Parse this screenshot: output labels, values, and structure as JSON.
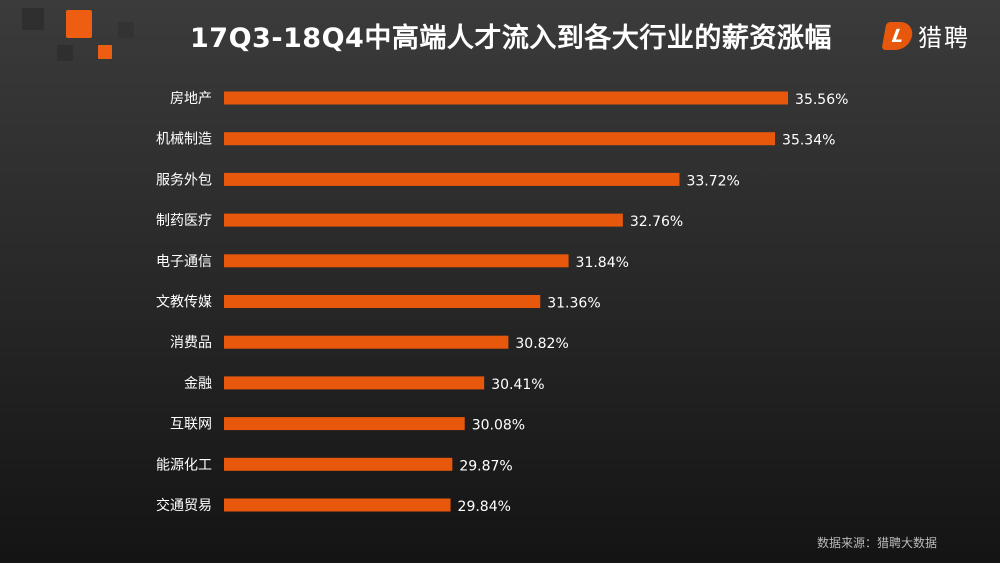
{
  "title": "17Q3-18Q4中高端人才流入到各大行业的薪资涨幅",
  "logo": {
    "mark": "L",
    "text": "猎聘"
  },
  "source": "数据来源：猎聘大数据",
  "colors": {
    "bar": "#e8580c",
    "background": "#2e2e2e",
    "text": "#ffffff"
  },
  "chart_data": {
    "type": "bar",
    "orientation": "horizontal",
    "title": "17Q3-18Q4中高端人才流入到各大行业的薪资涨幅",
    "categories": [
      "房地产",
      "机械制造",
      "服务外包",
      "制药医疗",
      "电子通信",
      "文教传媒",
      "消费品",
      "金融",
      "互联网",
      "能源化工",
      "交通贸易"
    ],
    "values": [
      35.56,
      35.34,
      33.72,
      32.76,
      31.84,
      31.36,
      30.82,
      30.41,
      30.08,
      29.87,
      29.84
    ],
    "labels": [
      "35.56%",
      "35.34%",
      "33.72%",
      "32.76%",
      "31.84%",
      "31.36%",
      "30.82%",
      "30.41%",
      "30.08%",
      "29.87%",
      "29.84%"
    ],
    "unit": "%",
    "xlim": [
      26,
      36
    ],
    "grid": false,
    "legend": "none"
  }
}
